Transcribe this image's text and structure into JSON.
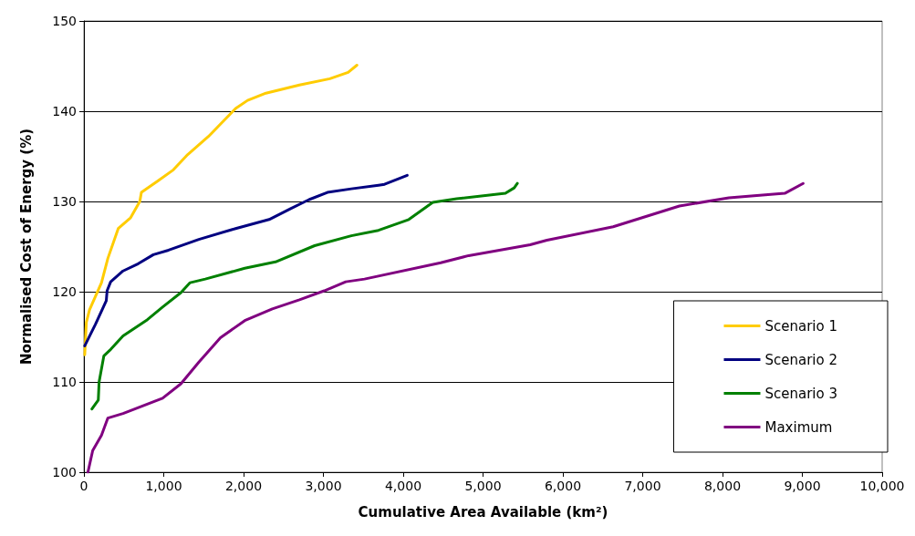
{
  "chart_data": {
    "type": "line",
    "xlabel": "Cumulative Area Available (km²)",
    "ylabel": "Normalised Cost of Energy (%)",
    "xlim": [
      0,
      10000
    ],
    "ylim": [
      100,
      150
    ],
    "xticks": [
      0,
      {
        "value": 1000,
        "label": "1,000"
      },
      {
        "value": 2000,
        "label": "2,000"
      },
      {
        "value": 3000,
        "label": "3,000"
      },
      {
        "value": 4000,
        "label": "4,000"
      },
      {
        "value": 5000,
        "label": "5,000"
      },
      {
        "value": 6000,
        "label": "6,000"
      },
      {
        "value": 7000,
        "label": "7,000"
      },
      {
        "value": 8000,
        "label": "8,000"
      },
      {
        "value": 9000,
        "label": "9,000"
      },
      {
        "value": 10000,
        "label": "10,000"
      }
    ],
    "yticks": [
      100,
      110,
      120,
      130,
      140,
      150
    ],
    "grid": "y",
    "legend": "bottom right",
    "marker": "none",
    "line_style": "solid",
    "series": [
      {
        "name": "Scenario 1",
        "color": "#ffcc00",
        "x": [
          10,
          30,
          70,
          220,
          300,
          430,
          585,
          700,
          720,
          930,
          1120,
          1300,
          1560,
          1900,
          2050,
          2280,
          2700,
          3080,
          3310,
          3420
        ],
        "values": [
          113,
          116.6,
          118,
          121,
          123.7,
          127,
          128.2,
          130,
          131,
          132.3,
          133.5,
          135.2,
          137.2,
          140.3,
          141.2,
          142,
          142.9,
          143.6,
          144.3,
          145.1
        ]
      },
      {
        "name": "Scenario 2",
        "color": "#000080",
        "x": [
          10,
          145,
          280,
          290,
          335,
          490,
          680,
          870,
          1060,
          1440,
          1900,
          2320,
          2590,
          2820,
          3050,
          3350,
          3690,
          3766,
          4050
        ],
        "values": [
          114,
          116.4,
          119,
          120.1,
          121.1,
          122.3,
          123.1,
          124.1,
          124.6,
          125.8,
          127,
          128,
          129.2,
          130.2,
          131,
          131.4,
          131.8,
          131.9,
          132.9
        ]
      },
      {
        "name": "Scenario 3",
        "color": "#008000",
        "x": [
          100,
          180,
          190,
          250,
          335,
          490,
          795,
          985,
          1215,
          1330,
          1520,
          2015,
          2400,
          2890,
          3350,
          3690,
          4070,
          4370,
          4670,
          5280,
          5390,
          5430
        ],
        "values": [
          107,
          108,
          110,
          112.9,
          113.6,
          115.1,
          116.9,
          118.3,
          119.9,
          121,
          121.4,
          122.6,
          123.3,
          125.1,
          126.2,
          126.8,
          128,
          129.9,
          130.3,
          130.9,
          131.5,
          132
        ]
      },
      {
        "name": "Maximum",
        "color": "#800080",
        "x": [
          50,
          110,
          220,
          300,
          490,
          985,
          1215,
          1440,
          1710,
          2015,
          2360,
          2700,
          3010,
          3280,
          3515,
          4470,
          4820,
          5590,
          5800,
          6630,
          7460,
          8080,
          8780,
          9010
        ],
        "values": [
          100,
          102.4,
          104.1,
          106,
          106.5,
          108.2,
          109.8,
          112.2,
          114.9,
          116.8,
          118.1,
          119.1,
          120.1,
          121.1,
          121.4,
          123.2,
          124,
          125.2,
          125.7,
          127.2,
          129.5,
          130.4,
          130.9,
          132
        ]
      }
    ]
  }
}
